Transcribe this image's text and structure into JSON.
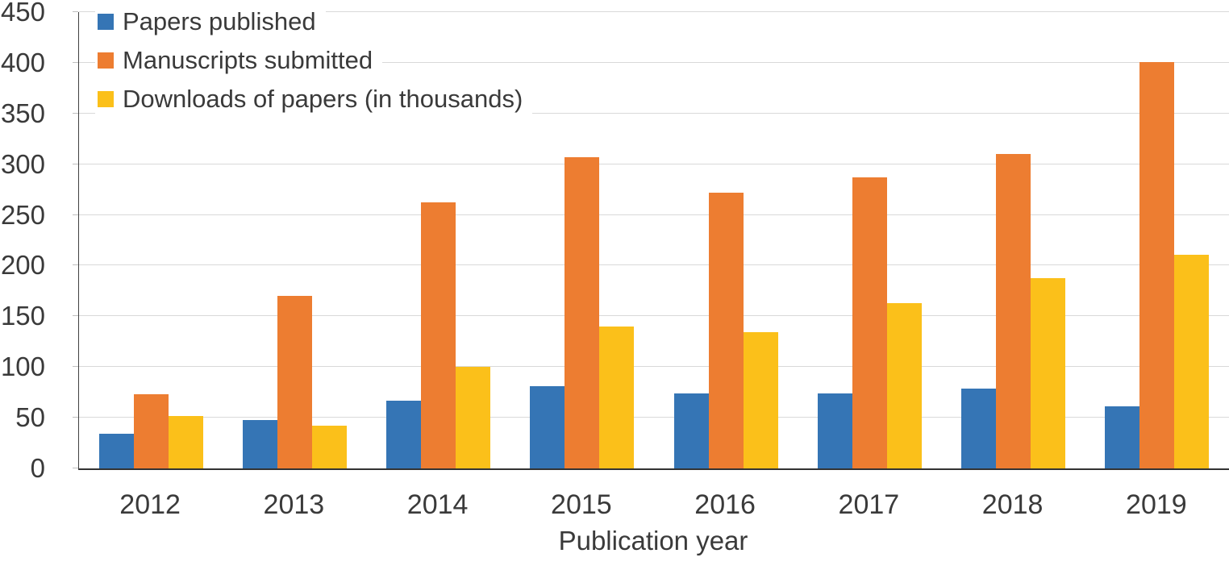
{
  "chart_data": {
    "type": "bar",
    "title": "",
    "xlabel": "Publication year",
    "ylabel": "",
    "ylim": [
      0,
      450
    ],
    "yticks": [
      0,
      50,
      100,
      150,
      200,
      250,
      300,
      350,
      400,
      450
    ],
    "grid": true,
    "legend_position": "top-left",
    "categories": [
      "2012",
      "2013",
      "2014",
      "2015",
      "2016",
      "2017",
      "2018",
      "2019"
    ],
    "series": [
      {
        "name": "Papers published",
        "color": "#3575B5",
        "values": [
          34,
          48,
          67,
          81,
          74,
          74,
          79,
          61
        ]
      },
      {
        "name": "Manuscripts submitted",
        "color": "#ED7D31",
        "values": [
          73,
          170,
          262,
          307,
          272,
          287,
          310,
          401
        ]
      },
      {
        "name": "Downloads of papers (in thousands)",
        "color": "#FBC01A",
        "values": [
          52,
          42,
          100,
          140,
          134,
          163,
          188,
          211
        ]
      }
    ],
    "colors": {
      "gridline": "#D9D9D9",
      "axis": "#404040",
      "tick": "#BFBFBF",
      "text": "#3A3A3A"
    }
  }
}
